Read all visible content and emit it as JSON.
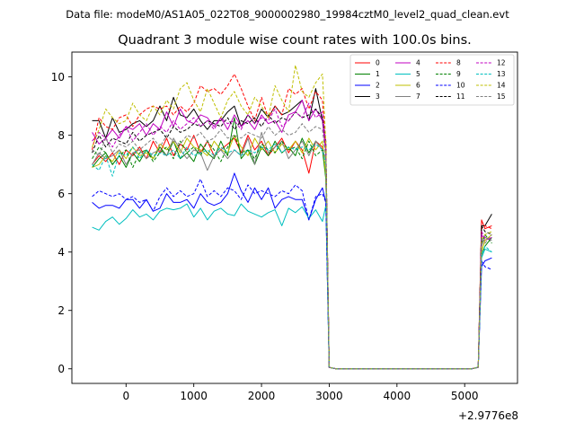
{
  "chart_data": {
    "type": "line",
    "suptitle": "Data file: modeM0/AS1A05_022T08_9000002980_19984cztM0_level2_quad_clean.evt",
    "title": "Quadrant 3 module wise count rates with 100.0s bins.",
    "xlabel": "",
    "ylabel": "",
    "x_offset_label": "+2.9776e8",
    "xlim": [
      -800,
      5780
    ],
    "ylim": [
      -0.5,
      10.85
    ],
    "x_ticks": [
      0,
      1000,
      2000,
      3000,
      4000,
      5000
    ],
    "y_ticks": [
      0,
      2,
      4,
      6,
      8,
      10
    ],
    "x": [
      -500,
      -400,
      -300,
      -200,
      -100,
      0,
      100,
      200,
      300,
      400,
      500,
      600,
      700,
      800,
      900,
      1000,
      1100,
      1200,
      1300,
      1400,
      1500,
      1600,
      1700,
      1800,
      1900,
      2000,
      2100,
      2200,
      2300,
      2400,
      2500,
      2600,
      2700,
      2800,
      2900,
      2950,
      3000,
      3100,
      3200,
      3300,
      3400,
      3500,
      3600,
      3700,
      3800,
      3900,
      4000,
      4100,
      4200,
      4300,
      4400,
      4500,
      4600,
      4700,
      4800,
      4900,
      5000,
      5100,
      5200,
      5250,
      5300,
      5400
    ],
    "legend": {
      "position": "top-right",
      "columns": 4
    },
    "series": [
      {
        "name": "0",
        "color": "#ff0000",
        "dash": "solid",
        "values": [
          7.0,
          7.3,
          7.1,
          7.4,
          7.0,
          7.5,
          7.3,
          7.6,
          7.2,
          7.8,
          7.4,
          7.9,
          7.3,
          7.7,
          7.5,
          8.0,
          7.4,
          7.8,
          7.3,
          7.5,
          7.7,
          7.9,
          7.4,
          8.0,
          7.5,
          7.8,
          7.3,
          7.6,
          7.9,
          7.4,
          7.8,
          7.5,
          6.7,
          7.8,
          7.6,
          6.6,
          0.05,
          0,
          0,
          0,
          0,
          0,
          0,
          0,
          0,
          0,
          0,
          0,
          0,
          0,
          0,
          0,
          0,
          0,
          0,
          0,
          0,
          0,
          0.05,
          5.1,
          4.8,
          4.9
        ]
      },
      {
        "name": "1",
        "color": "#008000",
        "dash": "solid",
        "values": [
          6.9,
          7.2,
          7.4,
          7.0,
          7.3,
          6.9,
          7.4,
          7.1,
          7.5,
          7.2,
          7.6,
          7.3,
          7.8,
          7.2,
          7.4,
          7.1,
          7.7,
          7.4,
          7.2,
          7.8,
          7.3,
          8.6,
          7.2,
          7.5,
          7.0,
          7.6,
          7.3,
          7.8,
          7.4,
          7.6,
          7.3,
          7.9,
          7.4,
          7.8,
          7.5,
          6.5,
          0.05,
          0,
          0,
          0,
          0,
          0,
          0,
          0,
          0,
          0,
          0,
          0,
          0,
          0,
          0,
          0,
          0,
          0,
          0,
          0,
          0,
          0,
          0.05,
          3.9,
          4.2,
          4.5
        ]
      },
      {
        "name": "2",
        "color": "#0000ff",
        "dash": "solid",
        "values": [
          5.7,
          5.5,
          5.6,
          5.6,
          5.5,
          5.8,
          5.8,
          5.5,
          5.8,
          5.4,
          5.5,
          6.0,
          5.7,
          5.7,
          5.8,
          5.5,
          6.0,
          5.7,
          5.6,
          5.7,
          6.0,
          6.7,
          6.1,
          5.7,
          6.2,
          5.8,
          6.2,
          5.5,
          5.8,
          5.9,
          5.8,
          5.8,
          5.1,
          5.8,
          6.2,
          5.7,
          0.05,
          0,
          0,
          0,
          0,
          0,
          0,
          0,
          0,
          0,
          0,
          0,
          0,
          0,
          0,
          0,
          0,
          0,
          0,
          0,
          0,
          0,
          0.05,
          3.5,
          3.7,
          3.8
        ]
      },
      {
        "name": "3",
        "color": "#000000",
        "dash": "solid",
        "values": [
          8.5,
          8.5,
          7.9,
          8.6,
          8.1,
          8.2,
          8.4,
          8.5,
          8.3,
          8.5,
          9.0,
          8.5,
          9.3,
          8.7,
          8.6,
          8.9,
          8.5,
          8.2,
          8.5,
          8.5,
          8.8,
          9.0,
          8.3,
          8.7,
          8.4,
          8.9,
          8.6,
          9.0,
          8.7,
          8.8,
          9.0,
          9.2,
          8.5,
          9.6,
          8.5,
          7.5,
          0.05,
          0,
          0,
          0,
          0,
          0,
          0,
          0,
          0,
          0,
          0,
          0,
          0,
          0,
          0,
          0,
          0,
          0,
          0,
          0,
          0,
          0,
          0.05,
          4.9,
          4.9,
          5.3
        ]
      },
      {
        "name": "4",
        "color": "#c000c0",
        "dash": "solid",
        "values": [
          8.1,
          7.7,
          7.9,
          8.2,
          7.9,
          8.3,
          8.2,
          8.4,
          8.0,
          8.4,
          8.2,
          8.8,
          8.3,
          8.9,
          8.5,
          8.4,
          8.7,
          8.6,
          8.3,
          8.6,
          8.2,
          8.7,
          8.3,
          8.5,
          8.2,
          8.7,
          8.4,
          8.5,
          8.1,
          8.7,
          8.8,
          9.2,
          8.5,
          8.9,
          8.5,
          7.4,
          0.05,
          0,
          0,
          0,
          0,
          0,
          0,
          0,
          0,
          0,
          0,
          0,
          0,
          0,
          0,
          0,
          0,
          0,
          0,
          0,
          0,
          0,
          0.05,
          4.6,
          4.4,
          4.5
        ]
      },
      {
        "name": "5",
        "color": "#00bfbf",
        "dash": "solid",
        "values": [
          4.85,
          4.75,
          5.05,
          5.2,
          4.95,
          5.15,
          5.45,
          5.2,
          5.3,
          5.1,
          5.4,
          5.5,
          5.45,
          5.5,
          5.65,
          5.2,
          5.5,
          5.1,
          5.4,
          5.5,
          5.3,
          5.25,
          5.65,
          5.4,
          5.3,
          5.2,
          5.35,
          5.45,
          4.9,
          5.5,
          5.35,
          5.55,
          5.15,
          5.45,
          5.05,
          5.6,
          0.05,
          0,
          0,
          0,
          0,
          0,
          0,
          0,
          0,
          0,
          0,
          0,
          0,
          0,
          0,
          0,
          0,
          0,
          0,
          0,
          0,
          0,
          0.05,
          3.8,
          4.1,
          4.0
        ]
      },
      {
        "name": "6",
        "color": "#bfbf00",
        "dash": "solid",
        "values": [
          6.9,
          7.0,
          7.3,
          7.1,
          7.5,
          7.2,
          7.6,
          7.3,
          7.4,
          7.2,
          7.7,
          7.5,
          7.8,
          7.4,
          7.9,
          7.6,
          7.5,
          7.3,
          7.8,
          7.5,
          7.4,
          8.0,
          7.6,
          7.3,
          7.9,
          7.5,
          7.8,
          7.4,
          7.7,
          7.5,
          7.8,
          7.4,
          7.9,
          7.5,
          7.8,
          6.6,
          0.05,
          0,
          0,
          0,
          0,
          0,
          0,
          0,
          0,
          0,
          0,
          0,
          0,
          0,
          0,
          0,
          0,
          0,
          0,
          0,
          0,
          0,
          0.05,
          4.0,
          4.4,
          4.6
        ]
      },
      {
        "name": "7",
        "color": "#808080",
        "dash": "solid",
        "values": [
          7.0,
          7.4,
          7.2,
          7.3,
          7.5,
          7.0,
          7.4,
          7.5,
          7.2,
          7.4,
          7.5,
          7.3,
          7.9,
          7.5,
          7.2,
          7.5,
          7.4,
          6.8,
          7.3,
          7.5,
          7.2,
          7.5,
          7.3,
          7.9,
          7.0,
          8.1,
          7.4,
          7.6,
          7.8,
          7.2,
          7.5,
          7.8,
          7.3,
          7.8,
          7.5,
          7.2,
          0.05,
          0,
          0,
          0,
          0,
          0,
          0,
          0,
          0,
          0,
          0,
          0,
          0,
          0,
          0,
          0,
          0,
          0,
          0,
          0,
          0,
          0,
          0.05,
          4.2,
          4.5,
          4.4
        ]
      },
      {
        "name": "8",
        "color": "#ff0000",
        "dash": "dashed",
        "values": [
          7.5,
          8.6,
          8.3,
          8.2,
          8.6,
          8.7,
          8.3,
          8.7,
          8.9,
          9.0,
          8.9,
          9.0,
          8.7,
          9.0,
          8.8,
          9.1,
          9.7,
          9.5,
          9.6,
          9.4,
          9.7,
          10.1,
          9.6,
          9.0,
          8.5,
          9.3,
          8.6,
          9.0,
          8.7,
          9.6,
          9.4,
          9.6,
          8.9,
          9.5,
          9.2,
          7.6,
          0.05,
          0,
          0,
          0,
          0,
          0,
          0,
          0,
          0,
          0,
          0,
          0,
          0,
          0,
          0,
          0,
          0,
          0,
          0,
          0,
          0,
          0,
          0.05,
          4.8,
          4.9,
          4.8
        ]
      },
      {
        "name": "9",
        "color": "#008000",
        "dash": "dashed",
        "values": [
          7.2,
          7.6,
          7.4,
          7.0,
          7.3,
          7.5,
          6.9,
          7.4,
          7.5,
          7.1,
          7.4,
          7.6,
          7.2,
          7.8,
          7.4,
          7.6,
          7.3,
          7.8,
          7.5,
          7.1,
          7.6,
          8.0,
          7.4,
          7.5,
          7.2,
          7.7,
          7.5,
          7.4,
          7.8,
          7.5,
          7.6,
          7.2,
          7.8,
          7.3,
          7.5,
          7.4,
          0.05,
          0,
          0,
          0,
          0,
          0,
          0,
          0,
          0,
          0,
          0,
          0,
          0,
          0,
          0,
          0,
          0,
          0,
          0,
          0,
          0,
          0,
          0.05,
          4.3,
          4.6,
          4.3
        ]
      },
      {
        "name": "10",
        "color": "#0000ff",
        "dash": "dashed",
        "values": [
          5.9,
          6.1,
          6.0,
          5.9,
          6.0,
          5.8,
          5.9,
          5.7,
          5.8,
          5.4,
          5.9,
          6.2,
          5.9,
          6.1,
          5.9,
          6.0,
          6.5,
          5.9,
          6.1,
          5.9,
          6.2,
          6.1,
          5.8,
          6.3,
          6.0,
          6.1,
          6.0,
          5.9,
          6.1,
          6.0,
          6.3,
          6.1,
          5.1,
          5.9,
          6.0,
          5.7,
          0.05,
          0,
          0,
          0,
          0,
          0,
          0,
          0,
          0,
          0,
          0,
          0,
          0,
          0,
          0,
          0,
          0,
          0,
          0,
          0,
          0,
          0,
          0.05,
          3.7,
          3.5,
          3.4
        ]
      },
      {
        "name": "11",
        "color": "#000000",
        "dash": "dashed",
        "values": [
          7.4,
          8.0,
          7.6,
          7.9,
          7.8,
          7.7,
          8.1,
          7.8,
          8.0,
          8.1,
          8.2,
          7.9,
          8.3,
          8.1,
          8.2,
          8.4,
          8.3,
          8.5,
          8.4,
          8.3,
          8.6,
          8.2,
          8.5,
          8.4,
          8.6,
          8.3,
          8.7,
          8.4,
          8.6,
          8.5,
          8.8,
          8.6,
          8.7,
          8.9,
          8.6,
          7.8,
          0.05,
          0,
          0,
          0,
          0,
          0,
          0,
          0,
          0,
          0,
          0,
          0,
          0,
          0,
          0,
          0,
          0,
          0,
          0,
          0,
          0,
          0,
          0.05,
          4.9,
          4.7,
          4.6
        ]
      },
      {
        "name": "12",
        "color": "#c000c0",
        "dash": "dashed",
        "values": [
          7.8,
          8.1,
          7.9,
          7.6,
          8.0,
          8.3,
          7.8,
          8.1,
          8.4,
          8.0,
          8.3,
          8.1,
          8.5,
          8.2,
          8.4,
          8.6,
          8.3,
          8.5,
          8.2,
          8.6,
          8.4,
          8.5,
          8.2,
          8.7,
          8.4,
          8.6,
          8.5,
          8.9,
          8.3,
          8.5,
          8.8,
          8.6,
          9.1,
          8.6,
          8.8,
          7.7,
          0.05,
          0,
          0,
          0,
          0,
          0,
          0,
          0,
          0,
          0,
          0,
          0,
          0,
          0,
          0,
          0,
          0,
          0,
          0,
          0,
          0,
          0,
          0.05,
          4.7,
          4.5,
          4.4
        ]
      },
      {
        "name": "13",
        "color": "#00bfbf",
        "dash": "dashed",
        "values": [
          7.0,
          6.8,
          7.3,
          6.6,
          7.4,
          7.3,
          7.6,
          7.2,
          7.5,
          7.3,
          7.4,
          7.3,
          7.5,
          7.2,
          7.6,
          7.3,
          7.4,
          7.5,
          7.3,
          7.6,
          7.4,
          7.5,
          7.3,
          7.5,
          7.4,
          7.6,
          7.5,
          7.7,
          7.4,
          7.6,
          7.5,
          7.6,
          7.5,
          7.7,
          7.5,
          7.0,
          0.05,
          0,
          0,
          0,
          0,
          0,
          0,
          0,
          0,
          0,
          0,
          0,
          0,
          0,
          0,
          0,
          0,
          0,
          0,
          0,
          0,
          0,
          0.05,
          3.9,
          4.2,
          4.0
        ]
      },
      {
        "name": "14",
        "color": "#bfbf00",
        "dash": "dashed",
        "values": [
          7.6,
          8.2,
          8.9,
          8.6,
          8.4,
          8.5,
          9.1,
          8.7,
          8.5,
          9.0,
          8.7,
          9.2,
          8.9,
          9.6,
          9.8,
          9.2,
          8.8,
          9.6,
          9.1,
          8.6,
          9.2,
          9.5,
          9.0,
          8.7,
          9.3,
          9.0,
          8.6,
          9.7,
          9.2,
          8.8,
          10.4,
          9.5,
          9.3,
          9.8,
          10.1,
          7.7,
          0.05,
          0,
          0,
          0,
          0,
          0,
          0,
          0,
          0,
          0,
          0,
          0,
          0,
          0,
          0,
          0,
          0,
          0,
          0,
          0,
          0,
          0,
          0.05,
          4.4,
          4.6,
          4.7
        ]
      },
      {
        "name": "15",
        "color": "#808080",
        "dash": "dashed",
        "values": [
          7.5,
          7.3,
          7.9,
          7.4,
          7.7,
          7.6,
          7.8,
          7.5,
          7.7,
          7.9,
          7.6,
          8.0,
          7.8,
          7.7,
          8.0,
          7.9,
          8.1,
          7.8,
          7.9,
          8.2,
          7.9,
          8.0,
          7.9,
          8.1,
          8.0,
          7.9,
          8.3,
          8.0,
          8.2,
          8.0,
          8.1,
          8.4,
          8.1,
          8.3,
          8.2,
          7.2,
          0.05,
          0,
          0,
          0,
          0,
          0,
          0,
          0,
          0,
          0,
          0,
          0,
          0,
          0,
          0,
          0,
          0,
          0,
          0,
          0,
          0,
          0,
          0.05,
          4.5,
          4.3,
          4.6
        ]
      }
    ]
  }
}
